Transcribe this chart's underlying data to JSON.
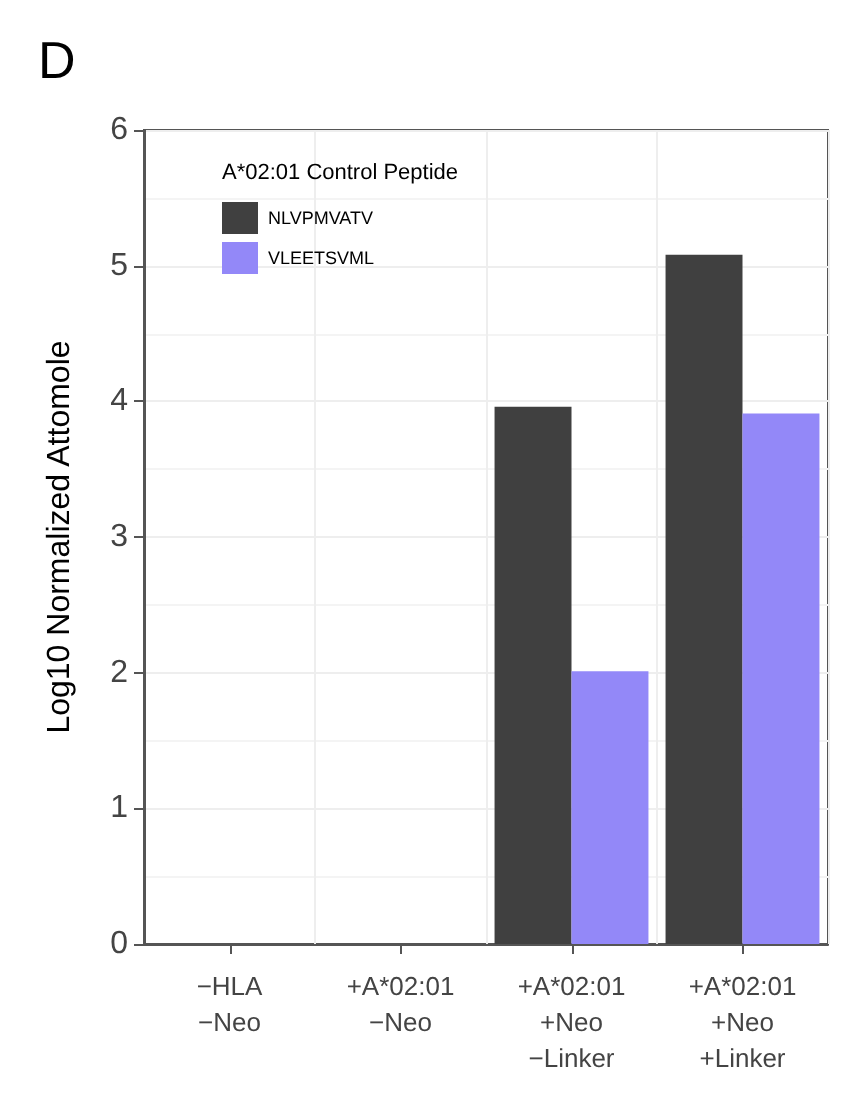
{
  "chart_data": {
    "type": "bar",
    "title": "D",
    "ylabel": "Log10 Normalized Attomole",
    "legend_title": "A*02:01 Control Peptide",
    "categories": [
      "−HLA\n−Neo",
      "+A*02:01\n−Neo",
      "+A*02:01\n+Neo\n−Linker",
      "+A*02:01\n+Neo\n+Linker"
    ],
    "series": [
      {
        "name": "NLVPMVATV",
        "color": "#404040",
        "values": [
          0,
          0,
          3.96,
          5.08
        ]
      },
      {
        "name": "VLEETSVML",
        "color": "#9388f8",
        "values": [
          0,
          0,
          2.01,
          3.91
        ]
      }
    ],
    "ylim": [
      0,
      6
    ],
    "yticks": [
      0,
      1,
      2,
      3,
      4,
      5,
      6
    ],
    "grid": true,
    "legend": "top left"
  }
}
